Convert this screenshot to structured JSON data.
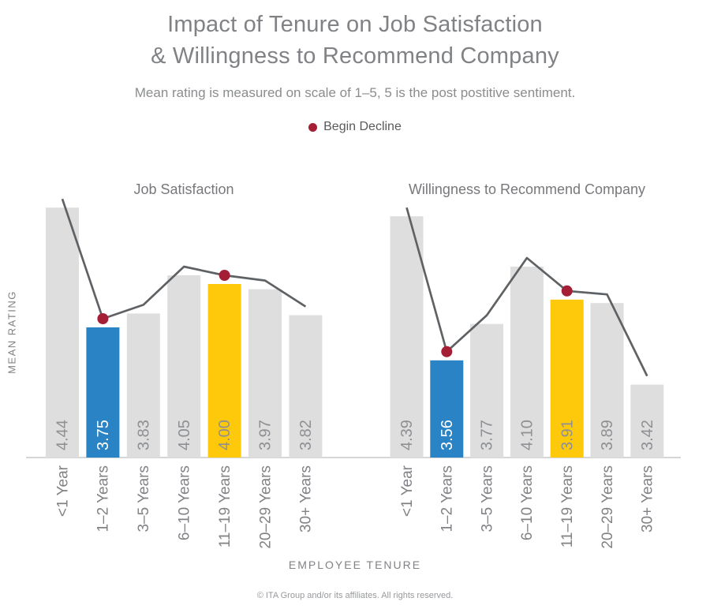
{
  "page": {
    "title": "Impact of Tenure on Job Satisfaction\n& Willingness to Recommend Company",
    "subtitle": "Mean rating is measured on scale of 1–5, 5 is the post postitive sentiment.",
    "legend_label": "Begin Decline",
    "y_axis_label": "MEAN RATING",
    "x_axis_label": "EMPLOYEE TENURE",
    "footer": "© ITA Group and/or its affiliates. All rights reserved."
  },
  "colors": {
    "title_gray": "#808285",
    "subtitle_gray": "#8a8c8e",
    "chart_title_gray": "#77787b",
    "axis_label_gray": "#808285",
    "category_label_gray": "#808285",
    "value_label_gray": "#8e9093",
    "value_label_on_blue": "#ffffff",
    "bar_gray": "#dedede",
    "bar_blue": "#2a83c4",
    "bar_yellow": "#fec90a",
    "trend_line_gray": "#5f6265",
    "decline_red": "#a41e35",
    "axis_line_gray": "#c7c8ca",
    "legend_text": "#58595b",
    "footer_gray": "#97999c"
  },
  "chart_data": [
    {
      "type": "bar",
      "title": "Job Satisfaction",
      "categories": [
        "<1 Year",
        "1–2 Years",
        "3–5 Years",
        "6–10 Years",
        "11–19 Years",
        "20–29 Years",
        "30+ Years"
      ],
      "values": [
        4.44,
        3.75,
        3.83,
        4.05,
        4.0,
        3.97,
        3.82
      ],
      "value_labels": [
        "4.44",
        "3.75",
        "3.83",
        "4.05",
        "4.00",
        "3.97",
        "3.82"
      ],
      "bar_colors": [
        "gray",
        "blue",
        "gray",
        "gray",
        "yellow",
        "gray",
        "gray"
      ],
      "line_overlay": true,
      "decline_markers": [
        "1–2 Years",
        "11–19 Years"
      ],
      "xlabel": "EMPLOYEE TENURE",
      "ylabel": "MEAN RATING",
      "ylim": [
        3.0,
        4.6
      ],
      "grid": false,
      "legend_position": "top"
    },
    {
      "type": "bar",
      "title": "Willingness to Recommend Company",
      "categories": [
        "<1 Year",
        "1–2 Years",
        "3–5 Years",
        "6–10 Years",
        "11–19 Years",
        "20–29 Years",
        "30+ Years"
      ],
      "values": [
        4.39,
        3.56,
        3.77,
        4.1,
        3.91,
        3.89,
        3.42
      ],
      "value_labels": [
        "4.39",
        "3.56",
        "3.77",
        "4.10",
        "3.91",
        "3.89",
        "3.42"
      ],
      "bar_colors": [
        "gray",
        "blue",
        "gray",
        "gray",
        "yellow",
        "gray",
        "gray"
      ],
      "line_overlay": true,
      "decline_markers": [
        "1–2 Years",
        "11–19 Years"
      ],
      "xlabel": "EMPLOYEE TENURE",
      "ylabel": "MEAN RATING",
      "ylim": [
        3.0,
        4.6
      ],
      "grid": false,
      "legend_position": "top"
    }
  ]
}
